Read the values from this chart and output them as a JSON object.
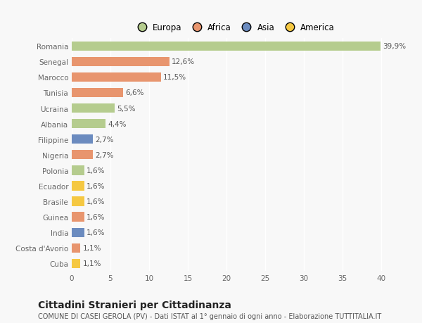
{
  "categories": [
    "Cuba",
    "Costa d'Avorio",
    "India",
    "Guinea",
    "Brasile",
    "Ecuador",
    "Polonia",
    "Nigeria",
    "Filippine",
    "Albania",
    "Ucraina",
    "Tunisia",
    "Marocco",
    "Senegal",
    "Romania"
  ],
  "values": [
    1.1,
    1.1,
    1.6,
    1.6,
    1.6,
    1.6,
    1.6,
    2.7,
    2.7,
    4.4,
    5.5,
    6.6,
    11.5,
    12.6,
    39.9
  ],
  "colors": [
    "#f5c842",
    "#e8956e",
    "#6b8bbf",
    "#e8956e",
    "#f5c842",
    "#f5c842",
    "#b5cc8e",
    "#e8956e",
    "#6b8bbf",
    "#b5cc8e",
    "#b5cc8e",
    "#e8956e",
    "#e8956e",
    "#e8956e",
    "#b5cc8e"
  ],
  "labels": [
    "1,1%",
    "1,1%",
    "1,6%",
    "1,6%",
    "1,6%",
    "1,6%",
    "1,6%",
    "2,7%",
    "2,7%",
    "4,4%",
    "5,5%",
    "6,6%",
    "11,5%",
    "12,6%",
    "39,9%"
  ],
  "legend_labels": [
    "Europa",
    "Africa",
    "Asia",
    "America"
  ],
  "legend_colors": [
    "#b5cc8e",
    "#e8956e",
    "#6b8bbf",
    "#f5c842"
  ],
  "title": "Cittadini Stranieri per Cittadinanza",
  "subtitle": "COMUNE DI CASEI GEROLA (PV) - Dati ISTAT al 1° gennaio di ogni anno - Elaborazione TUTTITALIA.IT",
  "xlim": [
    0,
    42
  ],
  "xticks": [
    0,
    5,
    10,
    15,
    20,
    25,
    30,
    35,
    40
  ],
  "background_color": "#f8f8f8",
  "grid_color": "#ffffff",
  "title_fontsize": 10,
  "subtitle_fontsize": 7,
  "label_fontsize": 7.5,
  "tick_fontsize": 7.5,
  "legend_fontsize": 8.5,
  "bar_height": 0.6
}
